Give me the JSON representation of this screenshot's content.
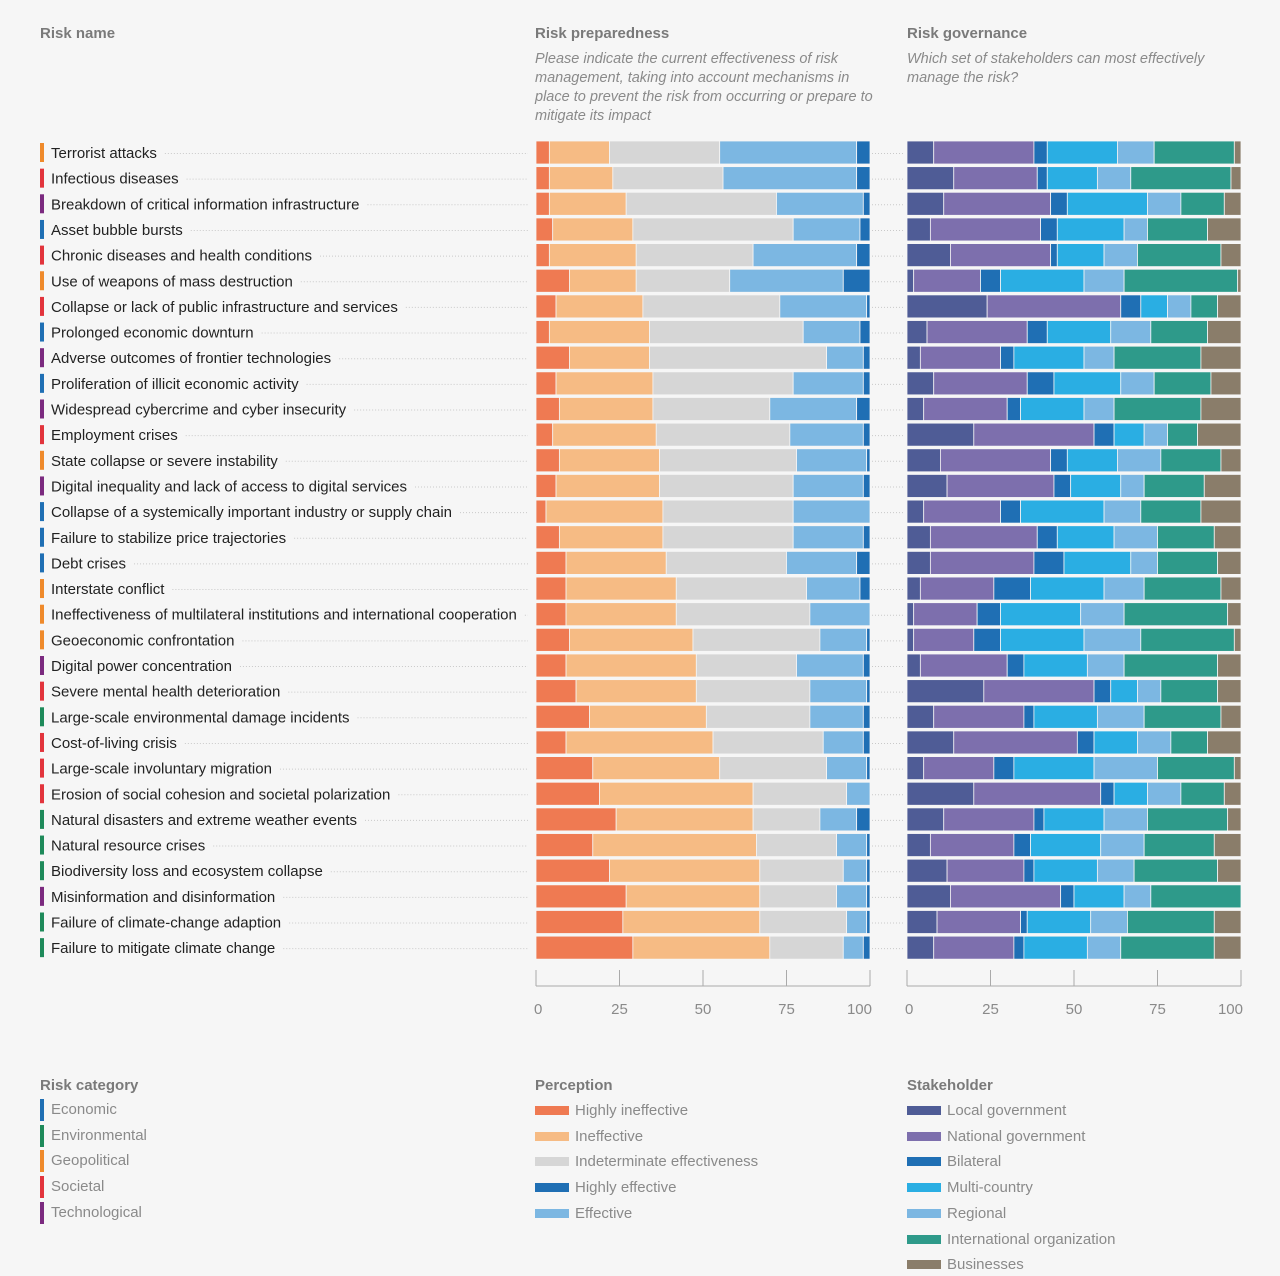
{
  "headers": {
    "risk_name": "Risk name",
    "preparedness_title": "Risk preparedness",
    "preparedness_subtitle": "Please indicate the current effectiveness of risk management, taking into account mechanisms in place to prevent the risk from occurring or prepare to mitigate its impact",
    "governance_title": "Risk governance",
    "governance_subtitle": "Which set of stakeholders can most effectively manage the risk?"
  },
  "category_colors": {
    "Economic": "#1f6fb4",
    "Environmental": "#1e8a5a",
    "Geopolitical": "#ef8a2b",
    "Societal": "#e2343c",
    "Technological": "#7b2a7f"
  },
  "legends": {
    "category": {
      "title": "Risk category",
      "items": [
        {
          "label": "Economic",
          "color": "#1f6fb4"
        },
        {
          "label": "Environmental",
          "color": "#1e8a5a"
        },
        {
          "label": "Geopolitical",
          "color": "#ef8a2b"
        },
        {
          "label": "Societal",
          "color": "#e2343c"
        },
        {
          "label": "Technological",
          "color": "#7b2a7f"
        }
      ]
    },
    "perception": {
      "title": "Perception",
      "items": [
        {
          "label": "Highly ineffective",
          "color": "#ef7a52"
        },
        {
          "label": "Ineffective",
          "color": "#f6bb84"
        },
        {
          "label": "Indeterminate effectiveness",
          "color": "#d6d6d6"
        },
        {
          "label": "Highly effective",
          "color": "#1f6fb4"
        },
        {
          "label": "Effective",
          "color": "#7cb7e2"
        }
      ]
    },
    "stakeholder": {
      "title": "Stakeholder",
      "items": [
        {
          "label": "Local government",
          "color": "#4f5c96"
        },
        {
          "label": "National government",
          "color": "#7d6fad"
        },
        {
          "label": "Bilateral",
          "color": "#1f6fb4"
        },
        {
          "label": "Multi-country",
          "color": "#2aaee3"
        },
        {
          "label": "Regional",
          "color": "#7cb7e2"
        },
        {
          "label": "International organization",
          "color": "#2e9a8a"
        },
        {
          "label": "Businesses",
          "color": "#8a7d6a"
        }
      ]
    }
  },
  "chart_data": [
    {
      "type": "bar",
      "orientation": "horizontal",
      "stacked": true,
      "title": "Risk preparedness",
      "xlim": [
        0,
        100
      ],
      "xticks": [
        0,
        25,
        50,
        75,
        100
      ],
      "segment_order": [
        "Highly ineffective",
        "Ineffective",
        "Indeterminate effectiveness",
        "Effective",
        "Highly effective"
      ],
      "segment_colors": [
        "#ef7a52",
        "#f6bb84",
        "#d6d6d6",
        "#7cb7e2",
        "#1f6fb4"
      ],
      "categories": [
        {
          "name": "Terrorist attacks",
          "category": "Geopolitical",
          "values": [
            4,
            18,
            33,
            41,
            4
          ]
        },
        {
          "name": "Infectious diseases",
          "category": "Societal",
          "values": [
            4,
            19,
            33,
            40,
            4
          ]
        },
        {
          "name": "Breakdown of critical information infrastructure",
          "category": "Technological",
          "values": [
            4,
            23,
            45,
            26,
            2
          ]
        },
        {
          "name": "Asset bubble bursts",
          "category": "Economic",
          "values": [
            5,
            24,
            48,
            20,
            3
          ]
        },
        {
          "name": "Chronic diseases and health conditions",
          "category": "Societal",
          "values": [
            4,
            26,
            35,
            31,
            4
          ]
        },
        {
          "name": "Use of weapons of mass destruction",
          "category": "Geopolitical",
          "values": [
            10,
            20,
            28,
            34,
            8
          ]
        },
        {
          "name": "Collapse or lack of public infrastructure and services",
          "category": "Societal",
          "values": [
            6,
            26,
            41,
            26,
            1
          ]
        },
        {
          "name": "Prolonged economic downturn",
          "category": "Economic",
          "values": [
            4,
            30,
            46,
            17,
            3
          ]
        },
        {
          "name": "Adverse outcomes of frontier technologies",
          "category": "Technological",
          "values": [
            10,
            24,
            53,
            11,
            2
          ]
        },
        {
          "name": "Proliferation of illicit economic activity",
          "category": "Economic",
          "values": [
            6,
            29,
            42,
            21,
            2
          ]
        },
        {
          "name": "Widespread cybercrime and cyber insecurity",
          "category": "Technological",
          "values": [
            7,
            28,
            35,
            26,
            4
          ]
        },
        {
          "name": "Employment crises",
          "category": "Societal",
          "values": [
            5,
            31,
            40,
            22,
            2
          ]
        },
        {
          "name": "State collapse or severe instability",
          "category": "Geopolitical",
          "values": [
            7,
            30,
            41,
            21,
            1
          ]
        },
        {
          "name": "Digital inequality and lack of access to digital services",
          "category": "Technological",
          "values": [
            6,
            31,
            40,
            21,
            2
          ]
        },
        {
          "name": "Collapse of a systemically important industry or supply chain",
          "category": "Economic",
          "values": [
            3,
            35,
            39,
            23,
            0
          ]
        },
        {
          "name": "Failure to stabilize price trajectories",
          "category": "Economic",
          "values": [
            7,
            31,
            39,
            21,
            2
          ]
        },
        {
          "name": "Debt crises",
          "category": "Economic",
          "values": [
            9,
            30,
            36,
            21,
            4
          ]
        },
        {
          "name": "Interstate conflict",
          "category": "Geopolitical",
          "values": [
            9,
            33,
            39,
            16,
            3
          ]
        },
        {
          "name": "Ineffectiveness of multilateral institutions and international cooperation",
          "category": "Geopolitical",
          "values": [
            9,
            33,
            40,
            18,
            0
          ]
        },
        {
          "name": "Geoeconomic confrontation",
          "category": "Geopolitical",
          "values": [
            10,
            37,
            38,
            14,
            1
          ]
        },
        {
          "name": "Digital power concentration",
          "category": "Technological",
          "values": [
            9,
            39,
            30,
            20,
            2
          ]
        },
        {
          "name": "Severe mental health deterioration",
          "category": "Societal",
          "values": [
            12,
            36,
            34,
            17,
            1
          ]
        },
        {
          "name": "Large-scale environmental damage incidents",
          "category": "Environmental",
          "values": [
            16,
            35,
            31,
            16,
            2
          ]
        },
        {
          "name": "Cost-of-living crisis",
          "category": "Societal",
          "values": [
            9,
            44,
            33,
            12,
            2
          ]
        },
        {
          "name": "Large-scale involuntary migration",
          "category": "Societal",
          "values": [
            17,
            38,
            32,
            12,
            1
          ]
        },
        {
          "name": "Erosion of social cohesion and societal polarization",
          "category": "Societal",
          "values": [
            19,
            46,
            28,
            7,
            0
          ]
        },
        {
          "name": "Natural disasters and extreme weather events",
          "category": "Environmental",
          "values": [
            24,
            41,
            20,
            11,
            4
          ]
        },
        {
          "name": "Natural resource crises",
          "category": "Environmental",
          "values": [
            17,
            49,
            24,
            9,
            1
          ]
        },
        {
          "name": "Biodiversity loss and ecosystem collapse",
          "category": "Environmental",
          "values": [
            22,
            45,
            25,
            7,
            1
          ]
        },
        {
          "name": "Misinformation and disinformation",
          "category": "Technological",
          "values": [
            27,
            40,
            23,
            9,
            1
          ]
        },
        {
          "name": "Failure of climate-change adaption",
          "category": "Environmental",
          "values": [
            26,
            41,
            26,
            6,
            1
          ]
        },
        {
          "name": "Failure to mitigate climate change",
          "category": "Environmental",
          "values": [
            29,
            41,
            22,
            6,
            2
          ]
        }
      ]
    },
    {
      "type": "bar",
      "orientation": "horizontal",
      "stacked": true,
      "title": "Risk governance",
      "xlim": [
        0,
        100
      ],
      "xticks": [
        0,
        25,
        50,
        75,
        100
      ],
      "segment_order": [
        "Local government",
        "National government",
        "Bilateral",
        "Multi-country",
        "Regional",
        "International organization",
        "Businesses"
      ],
      "segment_colors": [
        "#4f5c96",
        "#7d6fad",
        "#1f6fb4",
        "#2aaee3",
        "#7cb7e2",
        "#2e9a8a",
        "#8a7d6a"
      ],
      "categories": [
        {
          "name": "Terrorist attacks",
          "values": [
            8,
            30,
            4,
            21,
            11,
            24,
            2
          ]
        },
        {
          "name": "Infectious diseases",
          "values": [
            14,
            25,
            3,
            15,
            10,
            30,
            3
          ]
        },
        {
          "name": "Breakdown of critical information infrastructure",
          "values": [
            11,
            32,
            5,
            24,
            10,
            13,
            5
          ]
        },
        {
          "name": "Asset bubble bursts",
          "values": [
            7,
            33,
            5,
            20,
            7,
            18,
            10
          ]
        },
        {
          "name": "Chronic diseases and health conditions",
          "values": [
            13,
            30,
            2,
            14,
            10,
            25,
            6
          ]
        },
        {
          "name": "Use of weapons of mass destruction",
          "values": [
            2,
            20,
            6,
            25,
            12,
            34,
            1
          ]
        },
        {
          "name": "Collapse or lack of public infrastructure and services",
          "values": [
            24,
            40,
            6,
            8,
            7,
            8,
            7
          ]
        },
        {
          "name": "Prolonged economic downturn",
          "values": [
            6,
            30,
            6,
            19,
            12,
            17,
            10
          ]
        },
        {
          "name": "Adverse outcomes of frontier technologies",
          "values": [
            4,
            24,
            4,
            21,
            9,
            26,
            12
          ]
        },
        {
          "name": "Proliferation of illicit economic activity",
          "values": [
            8,
            28,
            8,
            20,
            10,
            17,
            9
          ]
        },
        {
          "name": "Widespread cybercrime and cyber insecurity",
          "values": [
            5,
            25,
            4,
            19,
            9,
            26,
            12
          ]
        },
        {
          "name": "Employment crises",
          "values": [
            20,
            36,
            6,
            9,
            7,
            9,
            13
          ]
        },
        {
          "name": "State collapse or severe instability",
          "values": [
            10,
            33,
            5,
            15,
            13,
            18,
            6
          ]
        },
        {
          "name": "Digital inequality and lack of access to digital services",
          "values": [
            12,
            32,
            5,
            15,
            7,
            18,
            11
          ]
        },
        {
          "name": "Collapse of a systemically important industry or supply chain",
          "values": [
            5,
            23,
            6,
            25,
            11,
            18,
            12
          ]
        },
        {
          "name": "Failure to stabilize price trajectories",
          "values": [
            7,
            32,
            6,
            17,
            13,
            17,
            8
          ]
        },
        {
          "name": "Debt crises",
          "values": [
            7,
            31,
            9,
            20,
            8,
            18,
            7
          ]
        },
        {
          "name": "Interstate conflict",
          "values": [
            4,
            22,
            11,
            22,
            12,
            23,
            6
          ]
        },
        {
          "name": "Ineffectiveness of multilateral institutions and international cooperation",
          "values": [
            2,
            19,
            7,
            24,
            13,
            31,
            4
          ]
        },
        {
          "name": "Geoeconomic confrontation",
          "values": [
            2,
            18,
            8,
            25,
            17,
            28,
            2
          ]
        },
        {
          "name": "Digital power concentration",
          "values": [
            4,
            26,
            5,
            19,
            11,
            28,
            7
          ]
        },
        {
          "name": "Severe mental health deterioration",
          "values": [
            23,
            33,
            5,
            8,
            7,
            17,
            7
          ]
        },
        {
          "name": "Large-scale environmental damage incidents",
          "values": [
            8,
            27,
            3,
            19,
            14,
            23,
            6
          ]
        },
        {
          "name": "Cost-of-living crisis",
          "values": [
            14,
            37,
            5,
            13,
            10,
            11,
            10
          ]
        },
        {
          "name": "Large-scale involuntary migration",
          "values": [
            5,
            21,
            6,
            24,
            19,
            23,
            2
          ]
        },
        {
          "name": "Erosion of social cohesion and societal polarization",
          "values": [
            20,
            38,
            4,
            10,
            10,
            13,
            5
          ]
        },
        {
          "name": "Natural disasters and extreme weather events",
          "values": [
            11,
            27,
            3,
            18,
            13,
            24,
            4
          ]
        },
        {
          "name": "Natural resource crises",
          "values": [
            7,
            25,
            5,
            21,
            13,
            21,
            8
          ]
        },
        {
          "name": "Biodiversity loss and ecosystem collapse",
          "values": [
            12,
            23,
            3,
            19,
            11,
            25,
            7
          ]
        },
        {
          "name": "Misinformation and disinformation",
          "values": [
            13,
            33,
            4,
            15,
            8,
            27,
            0
          ]
        },
        {
          "name": "Failure of climate-change adaption",
          "values": [
            9,
            25,
            2,
            19,
            11,
            26,
            8
          ]
        },
        {
          "name": "Failure to mitigate climate change",
          "values": [
            8,
            24,
            3,
            19,
            10,
            28,
            8
          ]
        }
      ]
    }
  ]
}
